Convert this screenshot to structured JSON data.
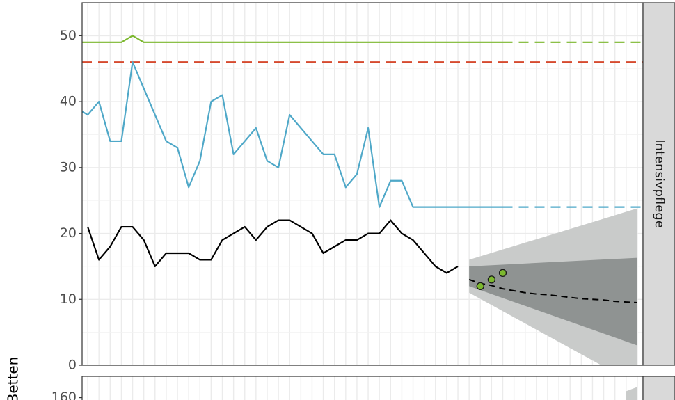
{
  "chart_data": {
    "type": "line",
    "ylabel": "Betten",
    "panels": [
      {
        "strip_label": "Intensivpflege",
        "ylim": [
          0,
          55
        ],
        "y_ticks": [
          0,
          10,
          20,
          30,
          40,
          50
        ],
        "x_index_range": [
          -0.5,
          49.5
        ],
        "grid": true,
        "series": [
          {
            "role": "capacity-green",
            "color": "#7cb82f",
            "x": [
              -0.5,
              0,
              1,
              2,
              3,
              4,
              5,
              6,
              7,
              8,
              9,
              10,
              11,
              12,
              13,
              14,
              15,
              16,
              17,
              18,
              19,
              20,
              21,
              22,
              23,
              24,
              25,
              26,
              27,
              28,
              29,
              30,
              31,
              32,
              33,
              34,
              35,
              36,
              37
            ],
            "values": [
              49,
              49,
              49,
              49,
              49,
              50,
              49,
              49,
              49,
              49,
              49,
              49,
              49,
              49,
              49,
              49,
              49,
              49,
              49,
              49,
              49,
              49,
              49,
              49,
              49,
              49,
              49,
              49,
              49,
              49,
              49,
              49,
              49,
              49,
              49,
              49,
              49,
              49,
              49
            ],
            "projection_x": [
              37,
              49.5
            ],
            "projection_values": [
              49,
              49
            ]
          },
          {
            "role": "threshold-red",
            "color": "#d64a2e",
            "dashed": true,
            "x": [
              -0.5,
              49.5
            ],
            "values": [
              46,
              46
            ]
          },
          {
            "role": "capacity-blue",
            "color": "#4fa8c8",
            "x": [
              -0.5,
              0,
              1,
              2,
              3,
              4,
              5,
              6,
              7,
              8,
              9,
              10,
              11,
              12,
              13,
              14,
              15,
              16,
              17,
              18,
              19,
              20,
              21,
              22,
              23,
              24,
              25,
              26,
              27,
              28,
              29,
              30,
              31,
              32,
              33,
              34,
              35,
              36,
              37
            ],
            "values": [
              38.5,
              38,
              40,
              34,
              34,
              46,
              42,
              38,
              34,
              33,
              27,
              31,
              40,
              41,
              32,
              34,
              36,
              31,
              30,
              38,
              36,
              34,
              32,
              32,
              27,
              29,
              36,
              24,
              28,
              28,
              24,
              24,
              24,
              24,
              24,
              24,
              24,
              24,
              24
            ],
            "projection_x": [
              37,
              49.5
            ],
            "projection_values": [
              24,
              24
            ]
          },
          {
            "role": "occupied",
            "color": "#000000",
            "x": [
              0,
              1,
              2,
              3,
              4,
              5,
              6,
              7,
              8,
              9,
              10,
              11,
              12,
              13,
              14,
              15,
              16,
              17,
              18,
              19,
              20,
              21,
              22,
              23,
              24,
              25,
              26,
              27,
              28,
              29,
              30,
              31,
              32,
              33
            ],
            "values": [
              21,
              16,
              18,
              21,
              21,
              19,
              15,
              17,
              17,
              17,
              16,
              16,
              19,
              20,
              21,
              19,
              21,
              22,
              22,
              21,
              20,
              17,
              18,
              19,
              19,
              20,
              20,
              22,
              20,
              19,
              17,
              15,
              14,
              15
            ]
          },
          {
            "role": "forecast",
            "color": "#000000",
            "dashed": true,
            "x": [
              34,
              35,
              36,
              37,
              38,
              39,
              40,
              41,
              42,
              43,
              44,
              45,
              46,
              47,
              48,
              49
            ],
            "values": [
              13,
              12.4,
              12.1,
              11.6,
              11.3,
              11,
              10.8,
              10.7,
              10.5,
              10.3,
              10.1,
              10,
              9.9,
              9.7,
              9.6,
              9.5
            ]
          },
          {
            "role": "new-observations",
            "color": "#7cb82f",
            "type": "scatter",
            "x": [
              35,
              36,
              37
            ],
            "values": [
              12,
              13,
              14
            ]
          }
        ],
        "forecast_bands": [
          {
            "role": "outer-interval",
            "color": "#c9cbca",
            "x": [
              34,
              49
            ],
            "lower": [
              11,
              -3
            ],
            "upper": [
              16,
              23.8
            ]
          },
          {
            "role": "inner-interval",
            "color": "#8f9392",
            "x": [
              34,
              49
            ],
            "lower": [
              12,
              3
            ],
            "upper": [
              15,
              16.3
            ]
          }
        ]
      },
      {
        "strip_label": "",
        "ylim": [
          0,
          170
        ],
        "y_ticks": [
          160
        ],
        "visible_series": [
          {
            "color": "#c9cbca",
            "x": [
              48,
              49
            ],
            "values": [
              163,
              165
            ]
          }
        ]
      }
    ]
  }
}
